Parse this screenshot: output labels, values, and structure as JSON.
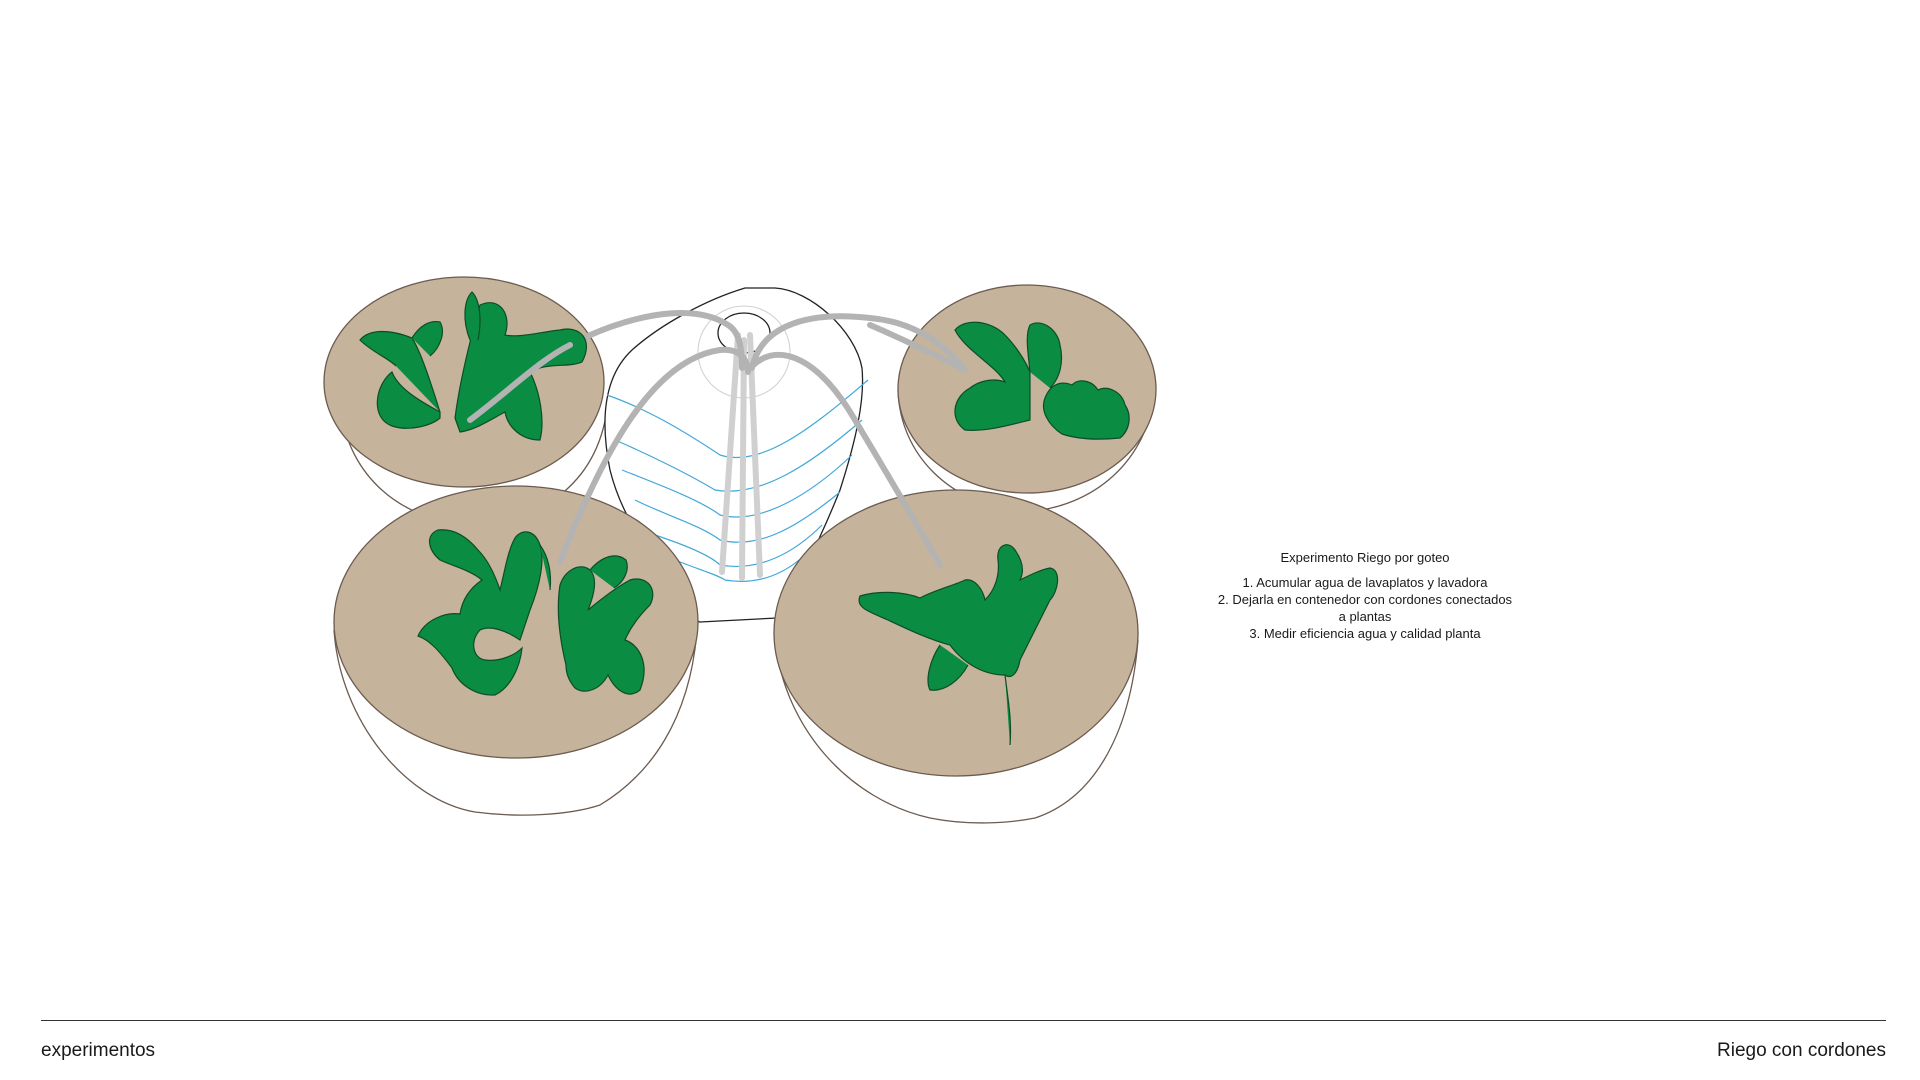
{
  "diagram": {
    "notes": {
      "title": "Experimento Riego por goteo",
      "steps": [
        "1. Acumular agua de lavaplatos y lavadora",
        "2. Dejarla en contenedor con cordones conectados a plantas",
        "3. Medir eficiencia agua y calidad planta"
      ]
    },
    "colors": {
      "soil": "#c6b39b",
      "pot_outline": "#6b5b50",
      "leaf": "#0a8c42",
      "leaf_outline": "#0b4d28",
      "cord": "#b3b3b3",
      "cord_light": "#d0d0d0",
      "water_line": "#41a8d9",
      "container_outline": "#222222"
    }
  },
  "footer": {
    "left_label": "experimentos",
    "right_label": "Riego con cordones"
  }
}
